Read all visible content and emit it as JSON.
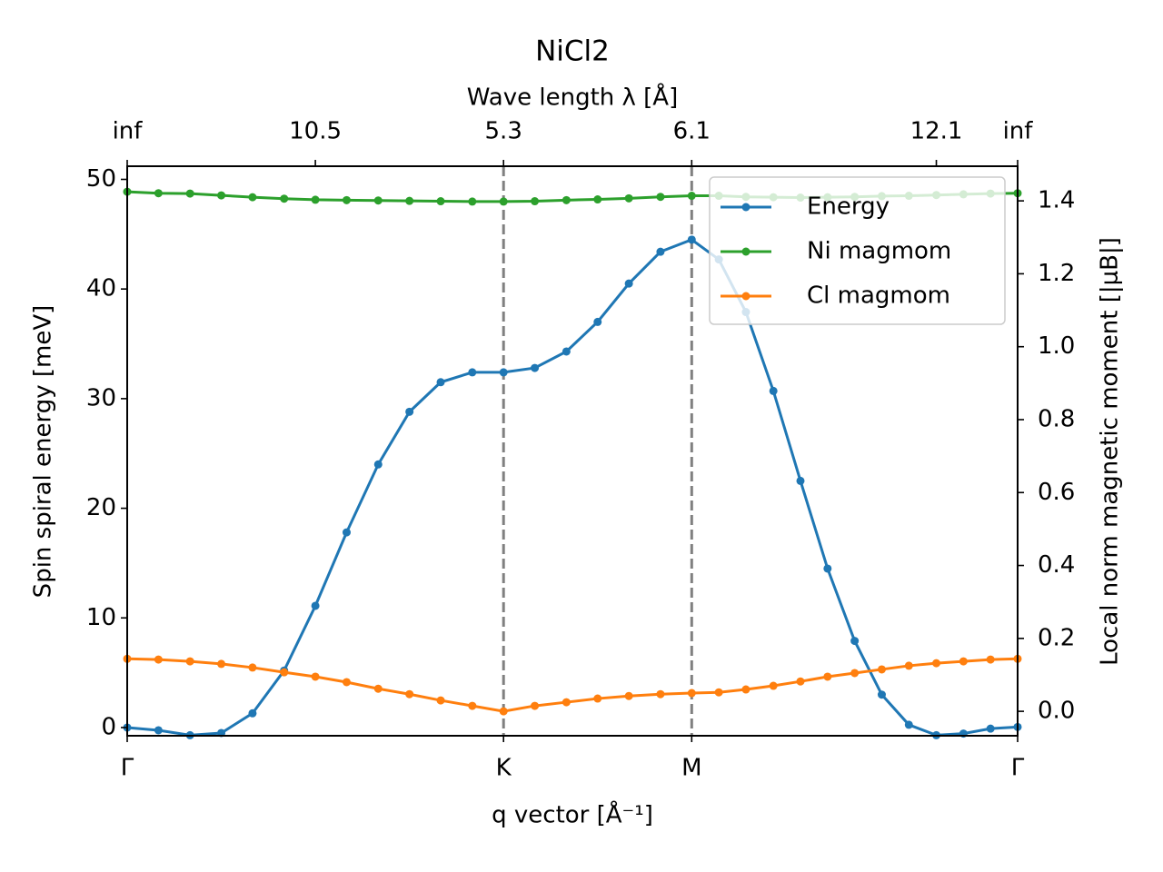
{
  "chart_data": {
    "type": "line",
    "title": "NiCl2",
    "xlabel": "q vector [Å⁻¹]",
    "ylabel": "Spin spiral energy [meV]",
    "y2label": "Local norm magnetic moment [|μB|]",
    "x2label": "Wave length λ [Å]",
    "x": [
      0,
      0.083,
      0.167,
      0.25,
      0.333,
      0.417,
      0.5,
      0.583,
      0.667,
      0.75,
      0.833,
      0.917,
      1,
      1.083,
      1.167,
      1.25,
      1.333,
      1.417,
      1.5,
      1.572,
      1.644,
      1.717,
      1.789,
      1.861,
      1.933,
      2.005,
      2.077,
      2.15,
      2.222,
      2.294,
      2.366
    ],
    "xlim": [
      0,
      2.366
    ],
    "xticks": [
      {
        "value": 0,
        "label": "Γ"
      },
      {
        "value": 1,
        "label": "K"
      },
      {
        "value": 1.5,
        "label": "M"
      },
      {
        "value": 2.366,
        "label": "Γ"
      }
    ],
    "x2ticks": [
      {
        "value": 0,
        "label": "inf"
      },
      {
        "value": 0.5,
        "label": "10.5"
      },
      {
        "value": 1,
        "label": "5.3"
      },
      {
        "value": 1.5,
        "label": "6.1"
      },
      {
        "value": 2.15,
        "label": "12.1"
      },
      {
        "value": 2.366,
        "label": "inf"
      }
    ],
    "vlines": [
      1,
      1.5
    ],
    "ylim": [
      -0.75,
      51.2
    ],
    "yticks": [
      0,
      10,
      20,
      30,
      40,
      50
    ],
    "y2lim": [
      -0.067,
      1.495
    ],
    "y2ticks": [
      {
        "value": 0,
        "label": "0.0"
      },
      0.2,
      0.4,
      0.6,
      0.8,
      {
        "value": 1,
        "label": "1.0"
      },
      1.2,
      1.4
    ],
    "legend": "upper right",
    "series": [
      {
        "name": "Energy",
        "color": "#1f77b4",
        "values": [
          0,
          -0.25,
          -0.7,
          -0.5,
          1.3,
          5.2,
          11.1,
          17.8,
          24.0,
          28.8,
          31.5,
          32.4,
          32.4,
          32.8,
          34.3,
          37.0,
          40.5,
          43.4,
          44.5,
          42.7,
          37.9,
          30.7,
          22.5,
          14.5,
          7.9,
          3.0,
          0.25,
          -0.7,
          -0.55,
          -0.1,
          0.05
        ]
      },
      {
        "name": "Ni magmom",
        "color": "#2ca02c",
        "axis": "y2",
        "values": [
          1.425,
          1.421,
          1.42,
          1.415,
          1.41,
          1.406,
          1.403,
          1.402,
          1.401,
          1.4,
          1.399,
          1.398,
          1.398,
          1.399,
          1.402,
          1.404,
          1.407,
          1.411,
          1.414,
          1.414,
          1.411,
          1.41,
          1.409,
          1.41,
          1.411,
          1.413,
          1.414,
          1.416,
          1.418,
          1.42,
          1.421
        ]
      },
      {
        "name": "Cl magmom",
        "color": "#ff7f0e",
        "axis": "y2",
        "values": [
          0.144,
          0.142,
          0.137,
          0.13,
          0.12,
          0.107,
          0.095,
          0.08,
          0.062,
          0.047,
          0.03,
          0.015,
          0,
          0.015,
          0.025,
          0.035,
          0.042,
          0.047,
          0.05,
          0.052,
          0.06,
          0.07,
          0.082,
          0.095,
          0.105,
          0.115,
          0.125,
          0.132,
          0.137,
          0.142,
          0.144
        ]
      }
    ]
  }
}
